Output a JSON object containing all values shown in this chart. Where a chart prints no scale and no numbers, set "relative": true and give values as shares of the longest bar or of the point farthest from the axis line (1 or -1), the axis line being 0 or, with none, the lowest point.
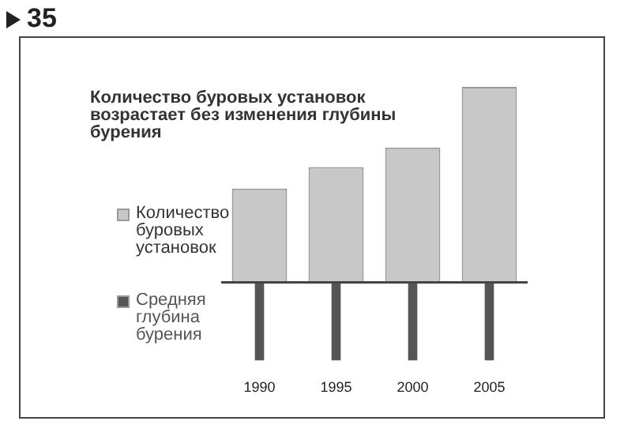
{
  "chart_data": {
    "type": "bar",
    "title": "Количество буровых установок возрастает без изменения глубины бурения",
    "annotations": [
      "35"
    ],
    "categories": [
      "1990",
      "1995",
      "2000",
      "2005"
    ],
    "relative": true,
    "legend": "left",
    "grid": false,
    "series": [
      {
        "name": "Количество буровых установок",
        "color": "#c8c8c8",
        "values": [
          0.48,
          0.59,
          0.69,
          1
        ]
      },
      {
        "name": "Средняя глубина бурения",
        "color": "#555555",
        "values": [
          -0.4,
          -0.4,
          -0.4,
          -0.4
        ]
      }
    ]
  }
}
